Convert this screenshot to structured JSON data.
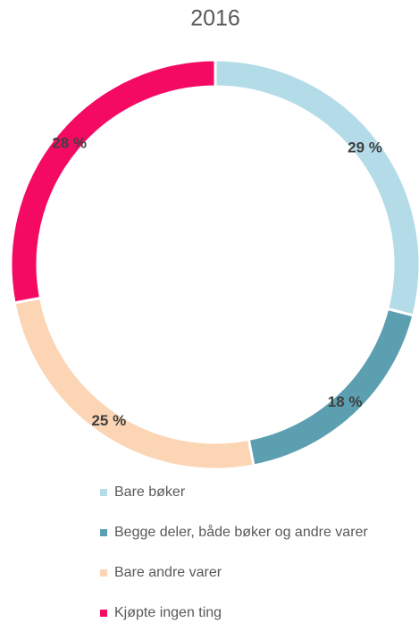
{
  "chart_data": {
    "type": "donut",
    "title": "2016",
    "categories": [
      "Bare bøker",
      "Begge deler, både bøker og andre varer",
      "Bare andre varer",
      "Kjøpte ingen ting"
    ],
    "values": [
      29,
      18,
      25,
      28
    ],
    "value_labels": [
      "29 %",
      "18 %",
      "25 %",
      "28 %"
    ],
    "colors": [
      "#b4dce8",
      "#5b9fb0",
      "#fcd5b4",
      "#f50a63"
    ],
    "legend": "bottom"
  }
}
